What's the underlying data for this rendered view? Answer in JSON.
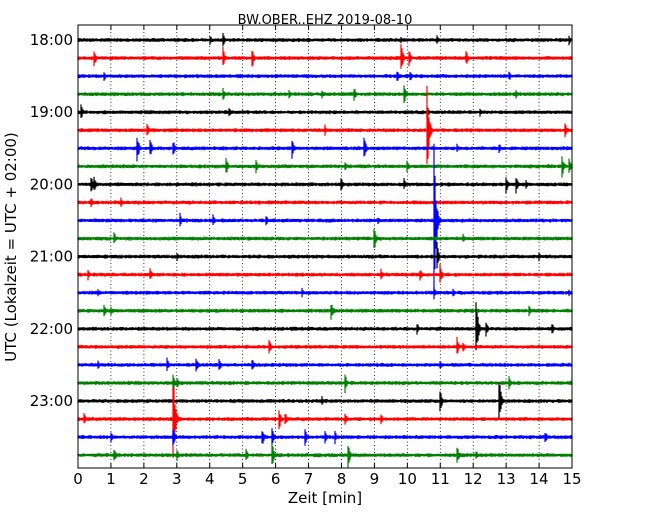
{
  "chart_data": {
    "type": "line",
    "title": "BW.OBER..EHZ 2019-08-10",
    "xlabel": "Zeit  [min]",
    "ylabel": "UTC (Lokalzeit = UTC + 02:00)",
    "xlim": [
      0,
      15
    ],
    "x_ticks": [
      "0",
      "1",
      "2",
      "3",
      "4",
      "5",
      "6",
      "7",
      "8",
      "9",
      "10",
      "11",
      "12",
      "13",
      "14",
      "15"
    ],
    "y_tick_labels": [
      "18:00",
      "19:00",
      "20:00",
      "21:00",
      "22:00",
      "23:00"
    ],
    "grid": "vertical dotted lines at each minute",
    "colors": [
      "#000000",
      "#ff0000",
      "#0000ff",
      "#008000"
    ],
    "trace_interval_minutes": 15,
    "traces": [
      {
        "start": "18:00",
        "color": "#000000",
        "events": [
          [
            4.0,
            7
          ],
          [
            4.4,
            8
          ],
          [
            14.9,
            7
          ],
          [
            9.8,
            5
          ],
          [
            10.9,
            5
          ]
        ]
      },
      {
        "start": "18:15",
        "color": "#ff0000",
        "events": [
          [
            0.5,
            9
          ],
          [
            4.4,
            12
          ],
          [
            5.3,
            10
          ],
          [
            9.8,
            20
          ],
          [
            10.05,
            10
          ],
          [
            11.8,
            7
          ]
        ]
      },
      {
        "start": "18:30",
        "color": "#0000ff",
        "events": [
          [
            0.8,
            5
          ],
          [
            9.7,
            7
          ],
          [
            10.1,
            5
          ],
          [
            13.1,
            5
          ]
        ]
      },
      {
        "start": "18:45",
        "color": "#008000",
        "events": [
          [
            4.4,
            8
          ],
          [
            6.4,
            7
          ],
          [
            7.4,
            6
          ],
          [
            8.4,
            7
          ],
          [
            9.9,
            12
          ],
          [
            13.3,
            6
          ]
        ]
      },
      {
        "start": "19:00",
        "color": "#000000",
        "events": [
          [
            0.1,
            8
          ],
          [
            4.6,
            5
          ],
          [
            10.6,
            8
          ],
          [
            12.2,
            5
          ]
        ]
      },
      {
        "start": "19:15",
        "color": "#ff0000",
        "events": [
          [
            2.1,
            8
          ],
          [
            7.5,
            6
          ],
          [
            10.6,
            50
          ],
          [
            14.8,
            7
          ]
        ]
      },
      {
        "start": "19:30",
        "color": "#0000ff",
        "events": [
          [
            1.8,
            14
          ],
          [
            2.2,
            9
          ],
          [
            2.9,
            8
          ],
          [
            6.5,
            12
          ],
          [
            8.7,
            12
          ],
          [
            11.5,
            6
          ],
          [
            12.8,
            5
          ]
        ]
      },
      {
        "start": "19:45",
        "color": "#008000",
        "events": [
          [
            4.5,
            9
          ],
          [
            5.4,
            8
          ],
          [
            8.1,
            7
          ],
          [
            10.0,
            6
          ],
          [
            14.7,
            12
          ],
          [
            14.9,
            12
          ]
        ]
      },
      {
        "start": "20:00",
        "color": "#000000",
        "events": [
          [
            0.4,
            10
          ],
          [
            0.5,
            8
          ],
          [
            8.0,
            7
          ],
          [
            9.9,
            7
          ],
          [
            13.0,
            10
          ],
          [
            13.3,
            10
          ],
          [
            13.6,
            6
          ]
        ]
      },
      {
        "start": "20:15",
        "color": "#ff0000",
        "events": [
          [
            0.4,
            6
          ],
          [
            1.3,
            6
          ]
        ]
      },
      {
        "start": "20:30",
        "color": "#0000ff",
        "events": [
          [
            3.1,
            8
          ],
          [
            4.1,
            7
          ],
          [
            5.7,
            7
          ],
          [
            9.1,
            5
          ],
          [
            10.8,
            110
          ]
        ]
      },
      {
        "start": "20:45",
        "color": "#008000",
        "events": [
          [
            1.1,
            7
          ],
          [
            9.0,
            14
          ],
          [
            11.7,
            5
          ]
        ]
      },
      {
        "start": "21:00",
        "color": "#000000",
        "events": [
          [
            3.0,
            5
          ],
          [
            10.9,
            15
          ],
          [
            14.0,
            5
          ]
        ]
      },
      {
        "start": "21:15",
        "color": "#ff0000",
        "events": [
          [
            0.3,
            7
          ],
          [
            2.2,
            7
          ],
          [
            9.2,
            6
          ],
          [
            10.4,
            6
          ],
          [
            11.0,
            11
          ]
        ]
      },
      {
        "start": "21:30",
        "color": "#0000ff",
        "events": [
          [
            0.6,
            5
          ],
          [
            6.8,
            5
          ],
          [
            10.8,
            9
          ],
          [
            11.4,
            5
          ],
          [
            14.9,
            5
          ]
        ]
      },
      {
        "start": "21:45",
        "color": "#008000",
        "events": [
          [
            0.8,
            8
          ],
          [
            1.0,
            6
          ],
          [
            7.7,
            9
          ],
          [
            13.7,
            6
          ]
        ]
      },
      {
        "start": "22:00",
        "color": "#000000",
        "events": [
          [
            10.3,
            7
          ],
          [
            12.1,
            28
          ],
          [
            12.4,
            8
          ],
          [
            14.4,
            6
          ]
        ]
      },
      {
        "start": "22:15",
        "color": "#ff0000",
        "events": [
          [
            5.8,
            10
          ],
          [
            11.5,
            12
          ],
          [
            11.7,
            5
          ]
        ]
      },
      {
        "start": "22:30",
        "color": "#0000ff",
        "events": [
          [
            0.6,
            6
          ],
          [
            2.7,
            8
          ],
          [
            3.6,
            7
          ],
          [
            4.3,
            6
          ],
          [
            5.3,
            6
          ],
          [
            11.0,
            5
          ]
        ]
      },
      {
        "start": "22:45",
        "color": "#008000",
        "events": [
          [
            2.9,
            9
          ],
          [
            3.0,
            7
          ],
          [
            8.1,
            12
          ],
          [
            13.1,
            7
          ]
        ]
      },
      {
        "start": "23:00",
        "color": "#000000",
        "events": [
          [
            7.4,
            6
          ],
          [
            11.0,
            12
          ],
          [
            12.8,
            22
          ]
        ]
      },
      {
        "start": "23:15",
        "color": "#ff0000",
        "events": [
          [
            0.2,
            6
          ],
          [
            2.9,
            45
          ],
          [
            6.1,
            14
          ],
          [
            6.3,
            7
          ],
          [
            8.1,
            9
          ],
          [
            9.2,
            6
          ]
        ]
      },
      {
        "start": "23:30",
        "color": "#0000ff",
        "events": [
          [
            1.0,
            6
          ],
          [
            2.9,
            10
          ],
          [
            5.6,
            9
          ],
          [
            5.9,
            9
          ],
          [
            6.9,
            9
          ],
          [
            7.5,
            9
          ],
          [
            7.8,
            8
          ],
          [
            14.2,
            6
          ]
        ]
      },
      {
        "start": "23:45",
        "color": "#008000",
        "events": [
          [
            1.1,
            8
          ],
          [
            3.0,
            8
          ],
          [
            5.1,
            8
          ],
          [
            5.9,
            14
          ],
          [
            8.2,
            14
          ],
          [
            11.5,
            14
          ],
          [
            12.1,
            5
          ]
        ]
      }
    ]
  }
}
